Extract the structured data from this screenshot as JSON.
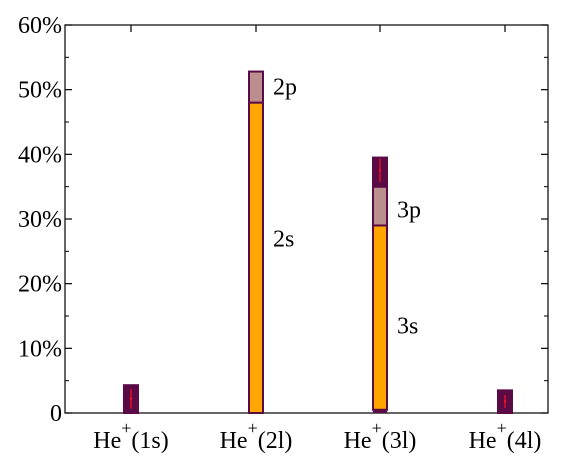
{
  "chart_data": {
    "type": "bar",
    "stacked": true,
    "categories": [
      "He⁺(1s)",
      "He⁺(2l)",
      "He⁺(3l)",
      "He⁺(4l)"
    ],
    "category_labels": [
      {
        "base": "He",
        "sup": "+",
        "suffix": "(1s)"
      },
      {
        "base": "He",
        "sup": "+",
        "suffix": "(2l)"
      },
      {
        "base": "He",
        "sup": "+",
        "suffix": "(3l)"
      },
      {
        "base": "He",
        "sup": "+",
        "suffix": "(4l)"
      }
    ],
    "ylim": [
      0,
      60
    ],
    "y_unit": "%",
    "yticks": [
      0,
      10,
      20,
      30,
      40,
      50,
      60
    ],
    "ytick_labels": [
      "0",
      "10%",
      "20%",
      "30%",
      "40%",
      "50%",
      "60%"
    ],
    "grid": false,
    "segments": [
      {
        "category": 0,
        "kind": "remainder",
        "bottom": 0,
        "top": 4.3
      },
      {
        "category": 1,
        "kind": "s",
        "bottom": 0,
        "top": 48.0
      },
      {
        "category": 1,
        "kind": "p",
        "bottom": 48.0,
        "top": 52.8
      },
      {
        "category": 2,
        "kind": "s",
        "bottom": 0.5,
        "top": 29.0
      },
      {
        "category": 2,
        "kind": "p",
        "bottom": 29.0,
        "top": 35.0
      },
      {
        "category": 2,
        "kind": "remainder",
        "bottom": 35.0,
        "top": 39.5
      },
      {
        "category": 3,
        "kind": "remainder",
        "bottom": 0,
        "top": 3.5
      }
    ],
    "error_bars": [
      {
        "category": 0,
        "value": 2.2,
        "err": 1.5
      },
      {
        "category": 2,
        "value": 37.5,
        "err": 1.8
      },
      {
        "category": 3,
        "value": 1.8,
        "err": 1.0
      }
    ],
    "annotations": [
      {
        "text": "2p",
        "category": 1,
        "y": 50.5
      },
      {
        "text": "2s",
        "category": 1,
        "y": 27.0
      },
      {
        "text": "3p",
        "category": 2,
        "y": 31.5
      },
      {
        "text": "3s",
        "category": 2,
        "y": 13.5
      }
    ],
    "colors": {
      "s_fill": "#FFA500",
      "p_fill": "#BC8F8F",
      "remainder_fill": "#5A0A44",
      "outline": "#5A0A44",
      "error_bar": "#FF1020",
      "axis": "#000000"
    }
  }
}
